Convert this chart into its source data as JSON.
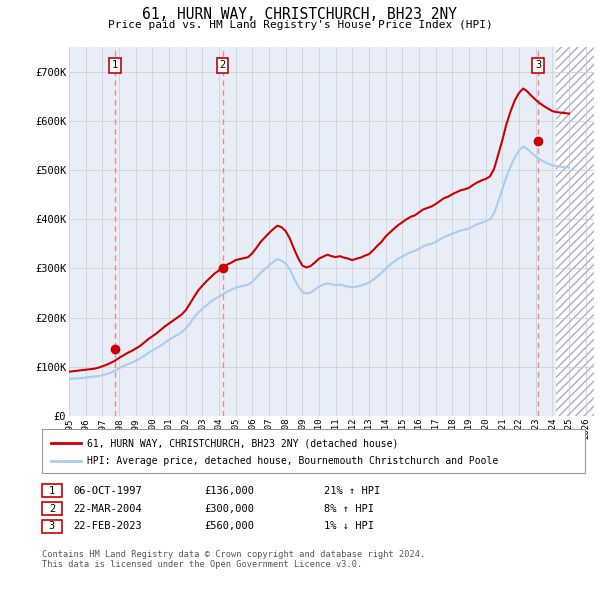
{
  "title": "61, HURN WAY, CHRISTCHURCH, BH23 2NY",
  "subtitle": "Price paid vs. HM Land Registry's House Price Index (HPI)",
  "ylim": [
    0,
    750000
  ],
  "yticks": [
    0,
    100000,
    200000,
    300000,
    400000,
    500000,
    600000,
    700000
  ],
  "ytick_labels": [
    "£0",
    "£100K",
    "£200K",
    "£300K",
    "£400K",
    "£500K",
    "£600K",
    "£700K"
  ],
  "xlim_start": 1995.0,
  "xlim_end": 2026.5,
  "xticks": [
    1995,
    1996,
    1997,
    1998,
    1999,
    2000,
    2001,
    2002,
    2003,
    2004,
    2005,
    2006,
    2007,
    2008,
    2009,
    2010,
    2011,
    2012,
    2013,
    2014,
    2015,
    2016,
    2017,
    2018,
    2019,
    2020,
    2021,
    2022,
    2023,
    2024,
    2025,
    2026
  ],
  "sale_dates": [
    1997.77,
    2004.22,
    2023.14
  ],
  "sale_prices": [
    136000,
    300000,
    560000
  ],
  "sale_labels": [
    "1",
    "2",
    "3"
  ],
  "hpi_line_color": "#aaccee",
  "price_line_color": "#cc0000",
  "sale_dot_color": "#cc0000",
  "sale_box_color": "#cc0000",
  "vline_color": "#ee8888",
  "grid_color": "#cccccc",
  "legend_line1": "61, HURN WAY, CHRISTCHURCH, BH23 2NY (detached house)",
  "legend_line2": "HPI: Average price, detached house, Bournemouth Christchurch and Poole",
  "table_rows": [
    [
      "1",
      "06-OCT-1997",
      "£136,000",
      "21% ↑ HPI"
    ],
    [
      "2",
      "22-MAR-2004",
      "£300,000",
      "8% ↑ HPI"
    ],
    [
      "3",
      "22-FEB-2023",
      "£560,000",
      "1% ↓ HPI"
    ]
  ],
  "footer": "Contains HM Land Registry data © Crown copyright and database right 2024.\nThis data is licensed under the Open Government Licence v3.0.",
  "hatch_start": 2024.25,
  "hpi_data_x": [
    1995.0,
    1995.25,
    1995.5,
    1995.75,
    1996.0,
    1996.25,
    1996.5,
    1996.75,
    1997.0,
    1997.25,
    1997.5,
    1997.75,
    1998.0,
    1998.25,
    1998.5,
    1998.75,
    1999.0,
    1999.25,
    1999.5,
    1999.75,
    2000.0,
    2000.25,
    2000.5,
    2000.75,
    2001.0,
    2001.25,
    2001.5,
    2001.75,
    2002.0,
    2002.25,
    2002.5,
    2002.75,
    2003.0,
    2003.25,
    2003.5,
    2003.75,
    2004.0,
    2004.25,
    2004.5,
    2004.75,
    2005.0,
    2005.25,
    2005.5,
    2005.75,
    2006.0,
    2006.25,
    2006.5,
    2006.75,
    2007.0,
    2007.25,
    2007.5,
    2007.75,
    2008.0,
    2008.25,
    2008.5,
    2008.75,
    2009.0,
    2009.25,
    2009.5,
    2009.75,
    2010.0,
    2010.25,
    2010.5,
    2010.75,
    2011.0,
    2011.25,
    2011.5,
    2011.75,
    2012.0,
    2012.25,
    2012.5,
    2012.75,
    2013.0,
    2013.25,
    2013.5,
    2013.75,
    2014.0,
    2014.25,
    2014.5,
    2014.75,
    2015.0,
    2015.25,
    2015.5,
    2015.75,
    2016.0,
    2016.25,
    2016.5,
    2016.75,
    2017.0,
    2017.25,
    2017.5,
    2017.75,
    2018.0,
    2018.25,
    2018.5,
    2018.75,
    2019.0,
    2019.25,
    2019.5,
    2019.75,
    2020.0,
    2020.25,
    2020.5,
    2020.75,
    2021.0,
    2021.25,
    2021.5,
    2021.75,
    2022.0,
    2022.25,
    2022.5,
    2022.75,
    2023.0,
    2023.25,
    2023.5,
    2023.75,
    2024.0,
    2024.25,
    2024.5,
    2024.75,
    2025.0
  ],
  "hpi_data_y": [
    75000,
    76000,
    76500,
    77000,
    78000,
    79000,
    80000,
    81000,
    83000,
    85000,
    88000,
    92000,
    97000,
    101000,
    105000,
    108000,
    112000,
    117000,
    122000,
    128000,
    133000,
    138000,
    143000,
    149000,
    155000,
    160000,
    165000,
    170000,
    178000,
    188000,
    200000,
    210000,
    218000,
    225000,
    232000,
    238000,
    243000,
    248000,
    253000,
    257000,
    261000,
    263000,
    265000,
    267000,
    273000,
    282000,
    291000,
    299000,
    306000,
    313000,
    319000,
    316000,
    310000,
    298000,
    280000,
    264000,
    252000,
    249000,
    251000,
    257000,
    263000,
    267000,
    270000,
    268000,
    266000,
    267000,
    265000,
    263000,
    261000,
    263000,
    265000,
    268000,
    271000,
    277000,
    284000,
    291000,
    300000,
    307000,
    314000,
    320000,
    324000,
    329000,
    333000,
    336000,
    340000,
    345000,
    348000,
    350000,
    354000,
    359000,
    364000,
    367000,
    371000,
    374000,
    377000,
    379000,
    381000,
    386000,
    390000,
    393000,
    396000,
    400000,
    412000,
    436000,
    461000,
    487000,
    508000,
    526000,
    540000,
    548000,
    543000,
    535000,
    528000,
    522000,
    517000,
    513000,
    510000,
    508000,
    507000,
    506000,
    505000
  ],
  "price_data_x": [
    1995.0,
    1995.25,
    1995.5,
    1995.75,
    1996.0,
    1996.25,
    1996.5,
    1996.75,
    1997.0,
    1997.25,
    1997.5,
    1997.75,
    1998.0,
    1998.25,
    1998.5,
    1998.75,
    1999.0,
    1999.25,
    1999.5,
    1999.75,
    2000.0,
    2000.25,
    2000.5,
    2000.75,
    2001.0,
    2001.25,
    2001.5,
    2001.75,
    2002.0,
    2002.25,
    2002.5,
    2002.75,
    2003.0,
    2003.25,
    2003.5,
    2003.75,
    2004.0,
    2004.25,
    2004.5,
    2004.75,
    2005.0,
    2005.25,
    2005.5,
    2005.75,
    2006.0,
    2006.25,
    2006.5,
    2006.75,
    2007.0,
    2007.25,
    2007.5,
    2007.75,
    2008.0,
    2008.25,
    2008.5,
    2008.75,
    2009.0,
    2009.25,
    2009.5,
    2009.75,
    2010.0,
    2010.25,
    2010.5,
    2010.75,
    2011.0,
    2011.25,
    2011.5,
    2011.75,
    2012.0,
    2012.25,
    2012.5,
    2012.75,
    2013.0,
    2013.25,
    2013.5,
    2013.75,
    2014.0,
    2014.25,
    2014.5,
    2014.75,
    2015.0,
    2015.25,
    2015.5,
    2015.75,
    2016.0,
    2016.25,
    2016.5,
    2016.75,
    2017.0,
    2017.25,
    2017.5,
    2017.75,
    2018.0,
    2018.25,
    2018.5,
    2018.75,
    2019.0,
    2019.25,
    2019.5,
    2019.75,
    2020.0,
    2020.25,
    2020.5,
    2020.75,
    2021.0,
    2021.25,
    2021.5,
    2021.75,
    2022.0,
    2022.25,
    2022.5,
    2022.75,
    2023.0,
    2023.25,
    2023.5,
    2023.75,
    2024.0,
    2024.25,
    2024.5,
    2024.75,
    2025.0
  ],
  "price_data_y": [
    90000,
    91000,
    92000,
    93000,
    94000,
    95000,
    96000,
    98000,
    101000,
    104000,
    108000,
    112000,
    118000,
    123000,
    128000,
    132000,
    137000,
    142000,
    149000,
    156000,
    162000,
    168000,
    175000,
    182000,
    188000,
    194000,
    200000,
    206000,
    215000,
    228000,
    242000,
    255000,
    265000,
    274000,
    282000,
    290000,
    296000,
    302000,
    308000,
    312000,
    317000,
    319000,
    321000,
    323000,
    331000,
    342000,
    354000,
    363000,
    372000,
    380000,
    387000,
    384000,
    376000,
    361000,
    340000,
    321000,
    306000,
    302000,
    305000,
    312000,
    320000,
    324000,
    328000,
    325000,
    323000,
    325000,
    322000,
    320000,
    317000,
    320000,
    322000,
    326000,
    329000,
    337000,
    346000,
    354000,
    365000,
    373000,
    381000,
    388000,
    394000,
    400000,
    405000,
    408000,
    414000,
    420000,
    423000,
    426000,
    431000,
    437000,
    443000,
    446000,
    451000,
    455000,
    459000,
    461000,
    464000,
    470000,
    475000,
    479000,
    482000,
    487000,
    502000,
    531000,
    561000,
    594000,
    620000,
    642000,
    657000,
    666000,
    660000,
    651000,
    643000,
    636000,
    630000,
    625000,
    620000,
    618000,
    617000,
    616000,
    615000
  ]
}
